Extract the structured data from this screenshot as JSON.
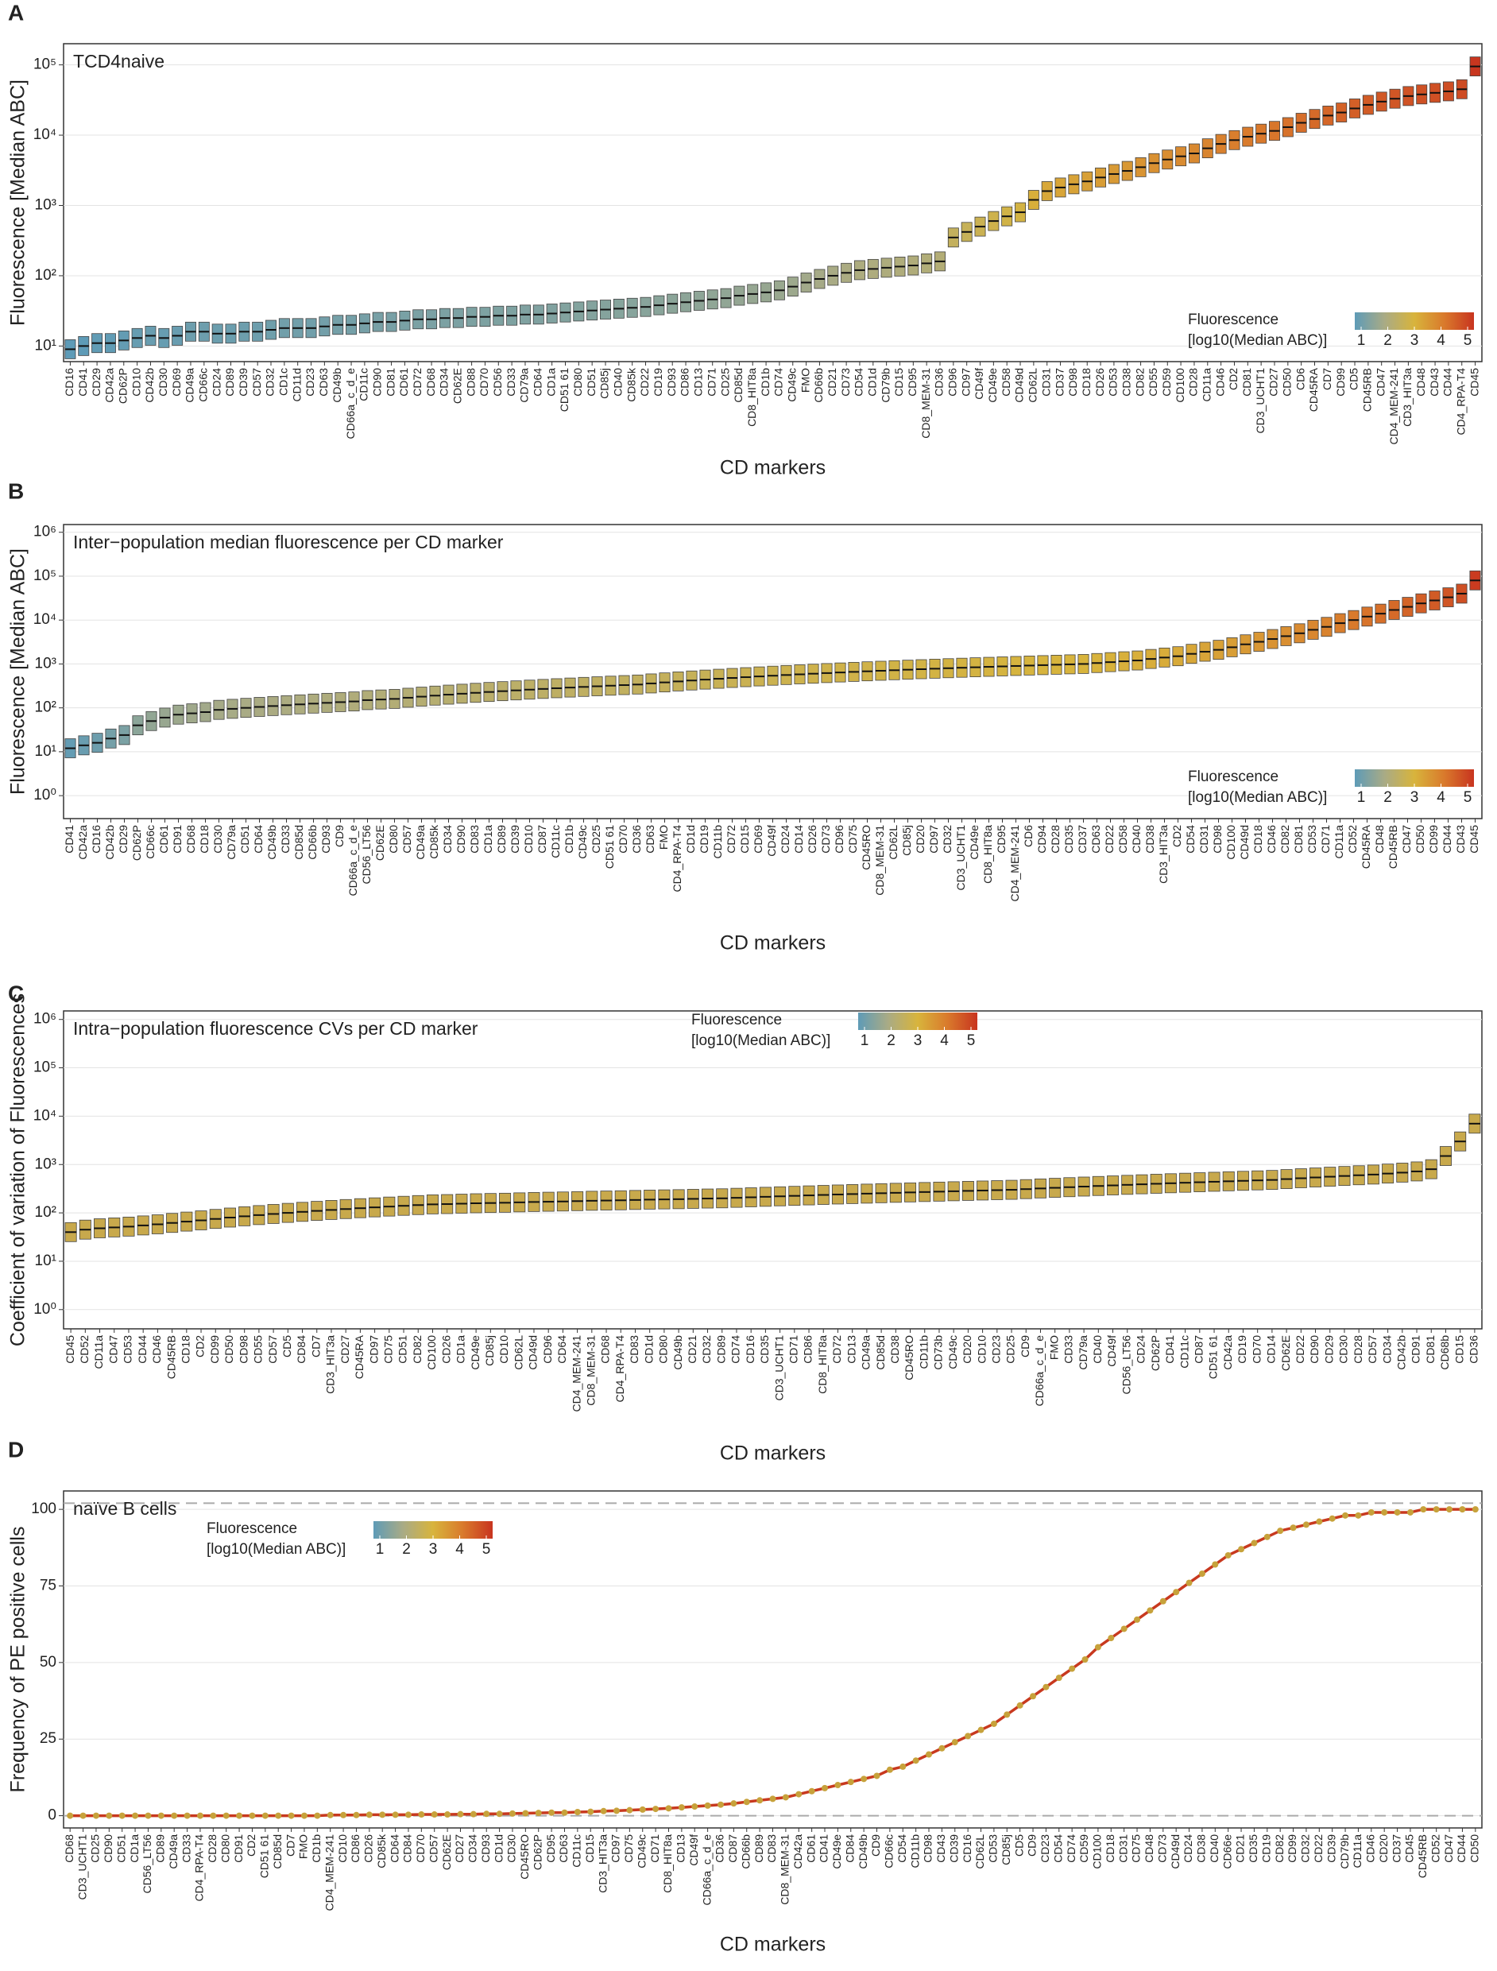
{
  "chart_data": [
    {
      "type": "box-median",
      "panel_label": "A",
      "title": "TCD4naive",
      "ylabel": "Fluorescence [Median ABC]",
      "xlabel": "CD markers",
      "log_y": true,
      "color_by_value": true,
      "legend_position": "bottom-right",
      "colorscale": {
        "title": [
          "Fluorescence",
          "[log10(Median ABC)]"
        ],
        "ticks": [
          1,
          2,
          3,
          4,
          5
        ],
        "colors": [
          "#5e9bb7",
          "#a9ab85",
          "#d8b43c",
          "#d97a2c",
          "#c8341f"
        ]
      },
      "ylim": [
        6,
        200000
      ],
      "yticks": [
        {
          "value": 10,
          "label": "10¹"
        },
        {
          "value": 100,
          "label": "10²"
        },
        {
          "value": 1000,
          "label": "10³"
        },
        {
          "value": 10000,
          "label": "10⁴"
        },
        {
          "value": 100000,
          "label": "10⁵"
        }
      ],
      "categories": [
        "CD16",
        "CD41",
        "CD29",
        "CD42a",
        "CD62P",
        "CD10",
        "CD42b",
        "CD30",
        "CD69",
        "CD49a",
        "CD66c",
        "CD24",
        "CD89",
        "CD39",
        "CD57",
        "CD32",
        "CD1c",
        "CD11d",
        "CD23",
        "CD63",
        "CD49b",
        "CD66a_c_d_e",
        "CD11c",
        "CD90",
        "CD81",
        "CD61",
        "CD72",
        "CD68",
        "CD34",
        "CD62E",
        "CD88",
        "CD70",
        "CD56",
        "CD33",
        "CD79a",
        "CD64",
        "CD1a",
        "CD51 61",
        "CD80",
        "CD51",
        "CD85j",
        "CD40",
        "CD85k",
        "CD22",
        "CD19",
        "CD93",
        "CD86",
        "CD13",
        "CD71",
        "CD25",
        "CD85d",
        "CD8_HIT8a",
        "CD1b",
        "CD74",
        "CD49c",
        "FMO",
        "CD66b",
        "CD21",
        "CD73",
        "CD54",
        "CD1d",
        "CD79b",
        "CD15",
        "CD95",
        "CD8_MEM-31",
        "CD36",
        "CD96",
        "CD97",
        "CD49f",
        "CD49e",
        "CD58",
        "CD49d",
        "CD62L",
        "CD31",
        "CD37",
        "CD98",
        "CD18",
        "CD26",
        "CD53",
        "CD38",
        "CD82",
        "CD55",
        "CD59",
        "CD100",
        "CD28",
        "CD11a",
        "CD46",
        "CD2",
        "CD81",
        "CD3_UCHT1",
        "CD27",
        "CD50",
        "CD6",
        "CD45RA",
        "CD7",
        "CD99",
        "CD5",
        "CD45RB",
        "CD47",
        "CD4_MEM-241",
        "CD3_HIT3a",
        "CD48",
        "CD43",
        "CD44",
        "CD4_RPA-T4",
        "CD45"
      ],
      "values": [
        9,
        10,
        11,
        11,
        12,
        13,
        14,
        13,
        14,
        16,
        16,
        15,
        15,
        16,
        16,
        17,
        18,
        18,
        18,
        19,
        20,
        20,
        21,
        22,
        22,
        23,
        24,
        24,
        25,
        25,
        26,
        26,
        27,
        27,
        28,
        28,
        29,
        30,
        31,
        32,
        33,
        34,
        35,
        36,
        38,
        40,
        42,
        44,
        46,
        48,
        52,
        55,
        58,
        62,
        70,
        80,
        90,
        100,
        110,
        120,
        125,
        130,
        135,
        140,
        150,
        160,
        350,
        420,
        500,
        600,
        700,
        800,
        1200,
        1600,
        1800,
        2000,
        2200,
        2500,
        2800,
        3100,
        3500,
        4000,
        4500,
        5000,
        5500,
        6500,
        7500,
        8500,
        9500,
        10500,
        11500,
        13000,
        15000,
        17000,
        19000,
        21000,
        24000,
        27000,
        30000,
        33000,
        36000,
        38000,
        40000,
        42000,
        45000,
        95000
      ]
    },
    {
      "type": "box-median",
      "panel_label": "B",
      "title": "Inter−population median fluorescence per CD marker",
      "ylabel": "Fluorescence [Median ABC]",
      "xlabel": "CD markers",
      "log_y": true,
      "color_by_value": true,
      "legend_position": "bottom-right",
      "colorscale": {
        "title": [
          "Fluorescence",
          "[log10(Median ABC)]"
        ],
        "ticks": [
          1,
          2,
          3,
          4,
          5
        ],
        "colors": [
          "#5e9bb7",
          "#a9ab85",
          "#d8b43c",
          "#d97a2c",
          "#c8341f"
        ]
      },
      "ylim": [
        0.3,
        1500000
      ],
      "yticks": [
        {
          "value": 1,
          "label": "10⁰"
        },
        {
          "value": 10,
          "label": "10¹"
        },
        {
          "value": 100,
          "label": "10²"
        },
        {
          "value": 1000,
          "label": "10³"
        },
        {
          "value": 10000,
          "label": "10⁴"
        },
        {
          "value": 100000,
          "label": "10⁵"
        },
        {
          "value": 1000000,
          "label": "10⁶"
        }
      ],
      "categories": [
        "CD41",
        "CD42a",
        "CD16",
        "CD42b",
        "CD29",
        "CD62P",
        "CD66c",
        "CD61",
        "CD91",
        "CD68",
        "CD18",
        "CD30",
        "CD79a",
        "CD51",
        "CD64",
        "CD49b",
        "CD33",
        "CD85d",
        "CD66b",
        "CD93",
        "CD9",
        "CD66a_c_d_e",
        "CD56_LT56",
        "CD62E",
        "CD80",
        "CD57",
        "CD49a",
        "CD85k",
        "CD34",
        "CD90",
        "CD83",
        "CD1a",
        "CD89",
        "CD39",
        "CD10",
        "CD87",
        "CD11c",
        "CD1b",
        "CD49c",
        "CD25",
        "CD51 61",
        "CD70",
        "CD36",
        "CD63",
        "FMO",
        "CD4_RPA-T4",
        "CD1d",
        "CD19",
        "CD11b",
        "CD72",
        "CD15",
        "CD69",
        "CD49f",
        "CD24",
        "CD14",
        "CD26",
        "CD73",
        "CD96",
        "CD75",
        "CD45RO",
        "CD8_MEM-31",
        "CD62L",
        "CD85j",
        "CD20",
        "CD97",
        "CD32",
        "CD3_UCHT1",
        "CD49e",
        "CD8_HIT8a",
        "CD95",
        "CD4_MEM-241",
        "CD6",
        "CD94",
        "CD28",
        "CD35",
        "CD37",
        "CD63",
        "CD22",
        "CD58",
        "CD40",
        "CD38",
        "CD3_HIT3a",
        "CD2",
        "CD54",
        "CD31",
        "CD98",
        "CD100",
        "CD49d",
        "CD18",
        "CD46",
        "CD82",
        "CD81",
        "CD53",
        "CD71",
        "CD11a",
        "CD52",
        "CD45RA",
        "CD48",
        "CD45RB",
        "CD47",
        "CD50",
        "CD99",
        "CD44",
        "CD43",
        "CD45"
      ],
      "values": [
        12,
        14,
        16,
        20,
        24,
        40,
        50,
        60,
        70,
        75,
        80,
        90,
        95,
        100,
        105,
        110,
        115,
        120,
        125,
        130,
        135,
        140,
        150,
        155,
        160,
        170,
        180,
        190,
        200,
        210,
        220,
        230,
        240,
        250,
        260,
        270,
        280,
        290,
        300,
        310,
        320,
        330,
        340,
        360,
        380,
        400,
        420,
        440,
        460,
        480,
        500,
        520,
        540,
        560,
        580,
        600,
        620,
        640,
        660,
        680,
        700,
        720,
        740,
        760,
        780,
        800,
        820,
        840,
        860,
        880,
        900,
        920,
        940,
        960,
        980,
        1000,
        1050,
        1100,
        1150,
        1200,
        1300,
        1400,
        1500,
        1700,
        1900,
        2100,
        2400,
        2800,
        3200,
        3700,
        4300,
        5000,
        6000,
        7000,
        8500,
        10000,
        12000,
        14000,
        17000,
        20000,
        24000,
        28000,
        33000,
        40000,
        80000
      ]
    },
    {
      "type": "box-median",
      "panel_label": "C",
      "title": "Intra−population fluorescence CVs per CD marker",
      "ylabel": "Coefficient of variation of Fluorescences",
      "xlabel": "CD markers",
      "log_y": true,
      "color": "#c8a94c",
      "legend_position": "top-center",
      "colorscale": {
        "title": [
          "Fluorescence",
          "[log10(Median ABC)]"
        ],
        "ticks": [
          1,
          2,
          3,
          4,
          5
        ],
        "colors": [
          "#5e9bb7",
          "#a9ab85",
          "#d8b43c",
          "#d97a2c",
          "#c8341f"
        ]
      },
      "ylim": [
        0.4,
        1500000
      ],
      "yticks": [
        {
          "value": 1,
          "label": "10⁰"
        },
        {
          "value": 10,
          "label": "10¹"
        },
        {
          "value": 100,
          "label": "10²"
        },
        {
          "value": 1000,
          "label": "10³"
        },
        {
          "value": 10000,
          "label": "10⁴"
        },
        {
          "value": 100000,
          "label": "10⁵"
        },
        {
          "value": 1000000,
          "label": "10⁶"
        }
      ],
      "categories": [
        "CD45",
        "CD52",
        "CD11a",
        "CD47",
        "CD53",
        "CD44",
        "CD46",
        "CD45RB",
        "CD18",
        "CD2",
        "CD99",
        "CD50",
        "CD98",
        "CD55",
        "CD57",
        "CD5",
        "CD84",
        "CD7",
        "CD3_HIT3a",
        "CD27",
        "CD45RA",
        "CD97",
        "CD75",
        "CD51",
        "CD82",
        "CD100",
        "CD26",
        "CD1a",
        "CD49e",
        "CD85j",
        "CD10",
        "CD62L",
        "CD49d",
        "CD96",
        "CD64",
        "CD4_MEM-241",
        "CD8_MEM-31",
        "CD68",
        "CD4_RPA-T4",
        "CD83",
        "CD1d",
        "CD80",
        "CD49b",
        "CD21",
        "CD32",
        "CD89",
        "CD74",
        "CD16",
        "CD35",
        "CD3_UCHT1",
        "CD71",
        "CD86",
        "CD8_HIT8a",
        "CD72",
        "CD13",
        "CD49a",
        "CD85d",
        "CD38",
        "CD45RO",
        "CD11b",
        "CD73b",
        "CD49c",
        "CD20",
        "CD10",
        "CD23",
        "CD25",
        "CD9",
        "CD66a_c_d_e",
        "FMO",
        "CD33",
        "CD79a",
        "CD40",
        "CD49f",
        "CD56_LT56",
        "CD24",
        "CD62P",
        "CD41",
        "CD11c",
        "CD87",
        "CD51 61",
        "CD42a",
        "CD19",
        "CD70",
        "CD14",
        "CD62E",
        "CD22",
        "CD90",
        "CD29",
        "CD30",
        "CD28",
        "CD57",
        "CD34",
        "CD42b",
        "CD91",
        "CD81",
        "CD68b",
        "CD15",
        "CD36"
      ],
      "values": [
        40,
        45,
        48,
        50,
        52,
        55,
        58,
        62,
        66,
        70,
        75,
        80,
        85,
        90,
        95,
        100,
        105,
        110,
        115,
        120,
        125,
        130,
        135,
        140,
        145,
        150,
        152,
        155,
        158,
        160,
        162,
        165,
        168,
        170,
        172,
        175,
        178,
        180,
        182,
        185,
        188,
        190,
        192,
        195,
        198,
        200,
        205,
        210,
        215,
        220,
        225,
        230,
        235,
        240,
        245,
        250,
        255,
        260,
        265,
        270,
        275,
        280,
        285,
        290,
        295,
        300,
        310,
        320,
        330,
        340,
        350,
        360,
        370,
        380,
        390,
        400,
        410,
        420,
        430,
        440,
        450,
        460,
        470,
        480,
        500,
        520,
        540,
        560,
        580,
        600,
        620,
        650,
        680,
        720,
        800,
        1500,
        3000,
        7000
      ]
    },
    {
      "type": "line",
      "panel_label": "D",
      "title": "naïve B cells",
      "ylabel": "Frequency of PE positive cells",
      "xlabel": "CD markers",
      "log_y": false,
      "color": "#c7a23b",
      "line_color": "#c8391f",
      "legend_position": "top-left",
      "hlines": [
        0,
        102
      ],
      "colorscale": {
        "title": [
          "Fluorescence",
          "[log10(Median ABC)]"
        ],
        "ticks": [
          1,
          2,
          3,
          4,
          5
        ],
        "colors": [
          "#5e9bb7",
          "#a9ab85",
          "#d8b43c",
          "#d97a2c",
          "#c8341f"
        ]
      },
      "ylim": [
        -4,
        106
      ],
      "yticks": [
        0,
        25,
        50,
        75,
        100
      ],
      "categories": [
        "CD68",
        "CD3_UCHT1",
        "CD25",
        "CD90",
        "CD51",
        "CD1a",
        "CD56_LT56",
        "CD89",
        "CD49a",
        "CD33",
        "CD4_RPA-T4",
        "CD28",
        "CD80",
        "CD91",
        "CD2",
        "CD51 61",
        "CD85d",
        "CD7",
        "FMO",
        "CD1b",
        "CD4_MEM-241",
        "CD10",
        "CD86",
        "CD26",
        "CD85k",
        "CD64",
        "CD84",
        "CD70",
        "CD57",
        "CD62E",
        "CD27",
        "CD34",
        "CD93",
        "CD1d",
        "CD30",
        "CD45RO",
        "CD62P",
        "CD95",
        "CD63",
        "CD11c",
        "CD15",
        "CD3_HIT3a",
        "CD97",
        "CD75",
        "CD49c",
        "CD71",
        "CD8_HIT8a",
        "CD13",
        "CD49f",
        "CD66a_c_d_e",
        "CD36",
        "CD87",
        "CD66b",
        "CD89",
        "CD83",
        "CD8_MEM-31",
        "CD42a",
        "CD61",
        "CD41",
        "CD49e",
        "CD84",
        "CD49b",
        "CD9",
        "CD66c",
        "CD54",
        "CD11b",
        "CD98",
        "CD43",
        "CD39",
        "CD16",
        "CD62L",
        "CD53",
        "CD85j",
        "CD5",
        "CD9",
        "CD23",
        "CD54",
        "CD74",
        "CD59",
        "CD100",
        "CD18",
        "CD31",
        "CD75",
        "CD48",
        "CD73",
        "CD49d",
        "CD24",
        "CD38",
        "CD40",
        "CD66e",
        "CD21",
        "CD35",
        "CD19",
        "CD82",
        "CD99",
        "CD32",
        "CD22",
        "CD39",
        "CD79b",
        "CD11a",
        "CD46",
        "CD20",
        "CD37",
        "CD45",
        "CD45RB",
        "CD52",
        "CD47",
        "CD44",
        "CD50"
      ],
      "values": [
        0,
        0,
        0,
        0,
        0,
        0,
        0,
        0,
        0,
        0,
        0,
        0,
        0,
        0,
        0,
        0,
        0,
        0,
        0,
        0,
        0.2,
        0.2,
        0.2,
        0.3,
        0.3,
        0.3,
        0.3,
        0.4,
        0.4,
        0.4,
        0.5,
        0.5,
        0.6,
        0.6,
        0.7,
        0.8,
        0.9,
        1,
        1,
        1.2,
        1.3,
        1.5,
        1.6,
        1.8,
        2,
        2.2,
        2.4,
        2.7,
        3,
        3.3,
        3.6,
        4,
        4.5,
        5,
        5.5,
        6,
        7,
        8,
        9,
        10,
        11,
        12,
        13,
        15,
        16,
        18,
        20,
        22,
        24,
        26,
        28,
        30,
        33,
        36,
        39,
        42,
        45,
        48,
        51,
        55,
        58,
        61,
        64,
        67,
        70,
        73,
        76,
        79,
        82,
        85,
        87,
        89,
        91,
        93,
        94,
        95,
        96,
        97,
        98,
        98,
        99,
        99,
        99,
        99,
        100,
        100,
        100,
        100,
        100
      ]
    }
  ]
}
